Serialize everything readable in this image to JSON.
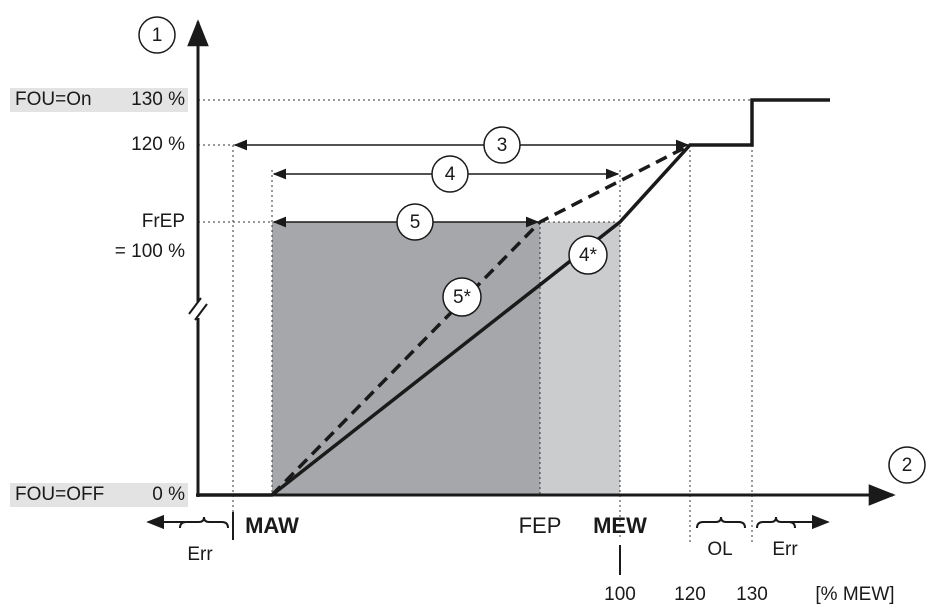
{
  "axes": {
    "y_marker": "1",
    "x_marker": "2"
  },
  "y_labels": {
    "fou_on": "FOU=On",
    "p130": "130 %",
    "p120": "120 %",
    "frep": "FrEP",
    "p100": "= 100 %",
    "fou_off": "FOU=OFF",
    "p0": "0 %"
  },
  "x_labels": {
    "maw": "MAW",
    "fep": "FEP",
    "mew": "MEW",
    "err_left": "Err",
    "ol": "OL",
    "err_right": "Err",
    "v100": "100",
    "v120": "120",
    "v130": "130",
    "unit": "[% MEW]"
  },
  "callouts": [
    "3",
    "4",
    "5",
    "4*",
    "5*"
  ]
}
